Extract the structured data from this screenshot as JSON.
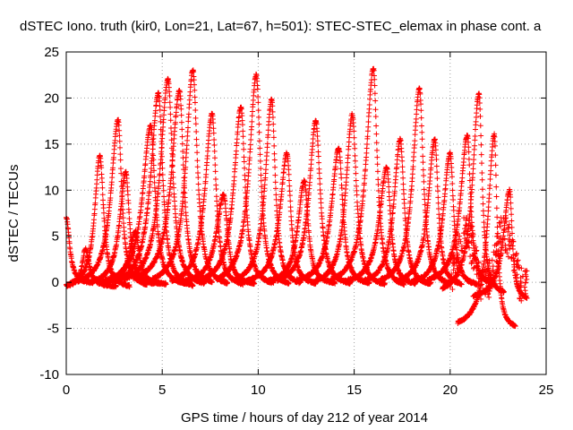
{
  "chart_data": {
    "type": "scatter",
    "title": "dSTEC Iono. truth (kir0, Lon=21, Lat=67, h=501): STEC-STEC_elemax in phase cont. a",
    "xlabel": "GPS time / hours of day 212 of year 2014",
    "ylabel": "dSTEC  / TECUs",
    "xlim": [
      0,
      25
    ],
    "ylim": [
      -10,
      25
    ],
    "x_ticks": [
      0,
      5,
      10,
      15,
      20,
      25
    ],
    "y_ticks": [
      -10,
      -5,
      0,
      5,
      10,
      15,
      20,
      25
    ],
    "grid": true,
    "marker": "+",
    "color": "#ff0000",
    "arcs": [
      {
        "start": 0.0,
        "peak_t": 0.0,
        "end": 1.4,
        "peak": 7.0,
        "floor": -0.2
      },
      {
        "start": 0.0,
        "peak_t": 1.0,
        "end": 2.6,
        "peak": 3.6,
        "floor": -0.5
      },
      {
        "start": 0.2,
        "peak_t": 1.75,
        "end": 3.3,
        "peak": 13.8,
        "floor": -0.7
      },
      {
        "start": 0.6,
        "peak_t": 2.7,
        "end": 4.2,
        "peak": 17.6,
        "floor": -0.6
      },
      {
        "start": 1.3,
        "peak_t": 3.1,
        "end": 4.6,
        "peak": 12.0,
        "floor": -0.4
      },
      {
        "start": 1.8,
        "peak_t": 3.6,
        "end": 5.2,
        "peak": 5.5,
        "floor": -0.3
      },
      {
        "start": 2.0,
        "peak_t": 4.4,
        "end": 6.2,
        "peak": 17.0,
        "floor": -0.5
      },
      {
        "start": 2.5,
        "peak_t": 4.8,
        "end": 6.6,
        "peak": 20.5,
        "floor": -0.8
      },
      {
        "start": 3.0,
        "peak_t": 5.3,
        "end": 7.2,
        "peak": 22.0,
        "floor": -0.6
      },
      {
        "start": 3.5,
        "peak_t": 5.9,
        "end": 7.6,
        "peak": 20.8,
        "floor": -0.4
      },
      {
        "start": 4.5,
        "peak_t": 6.6,
        "end": 8.4,
        "peak": 23.0,
        "floor": -0.6
      },
      {
        "start": 5.5,
        "peak_t": 7.6,
        "end": 9.2,
        "peak": 18.3,
        "floor": -0.6
      },
      {
        "start": 6.0,
        "peak_t": 8.2,
        "end": 9.8,
        "peak": 9.5,
        "floor": -0.3
      },
      {
        "start": 7.0,
        "peak_t": 9.1,
        "end": 10.8,
        "peak": 19.0,
        "floor": -0.5
      },
      {
        "start": 7.8,
        "peak_t": 9.9,
        "end": 11.6,
        "peak": 22.5,
        "floor": -0.6
      },
      {
        "start": 8.8,
        "peak_t": 10.7,
        "end": 12.2,
        "peak": 19.8,
        "floor": -0.5
      },
      {
        "start": 9.4,
        "peak_t": 11.5,
        "end": 13.0,
        "peak": 14.0,
        "floor": -0.4
      },
      {
        "start": 10.5,
        "peak_t": 12.4,
        "end": 14.0,
        "peak": 11.0,
        "floor": -0.3
      },
      {
        "start": 11.0,
        "peak_t": 13.0,
        "end": 14.8,
        "peak": 17.5,
        "floor": -0.5
      },
      {
        "start": 12.0,
        "peak_t": 14.2,
        "end": 15.8,
        "peak": 14.5,
        "floor": -0.4
      },
      {
        "start": 13.0,
        "peak_t": 14.9,
        "end": 16.6,
        "peak": 18.2,
        "floor": -0.6
      },
      {
        "start": 13.8,
        "peak_t": 16.0,
        "end": 17.6,
        "peak": 23.2,
        "floor": -0.7
      },
      {
        "start": 14.5,
        "peak_t": 16.7,
        "end": 18.2,
        "peak": 12.5,
        "floor": -0.4
      },
      {
        "start": 15.5,
        "peak_t": 17.4,
        "end": 19.0,
        "peak": 15.5,
        "floor": -0.5
      },
      {
        "start": 16.4,
        "peak_t": 18.4,
        "end": 20.0,
        "peak": 21.0,
        "floor": -0.6
      },
      {
        "start": 17.2,
        "peak_t": 19.2,
        "end": 20.6,
        "peak": 15.5,
        "floor": -0.5
      },
      {
        "start": 18.0,
        "peak_t": 20.0,
        "end": 21.4,
        "peak": 14.0,
        "floor": -0.5
      },
      {
        "start": 18.8,
        "peak_t": 20.9,
        "end": 22.2,
        "peak": 16.0,
        "floor": -0.4
      },
      {
        "start": 19.6,
        "peak_t": 21.5,
        "end": 22.8,
        "peak": 20.5,
        "floor": -1.5
      },
      {
        "start": 20.4,
        "peak_t": 22.3,
        "end": 23.4,
        "peak": 16.0,
        "floor": -5.2
      },
      {
        "start": 21.2,
        "peak_t": 23.1,
        "end": 24.0,
        "peak": 10.0,
        "floor": -2.0
      }
    ],
    "noise_cluster": {
      "x": [
        20.0,
        24.0
      ],
      "y": [
        -2.0,
        7.0
      ]
    }
  }
}
